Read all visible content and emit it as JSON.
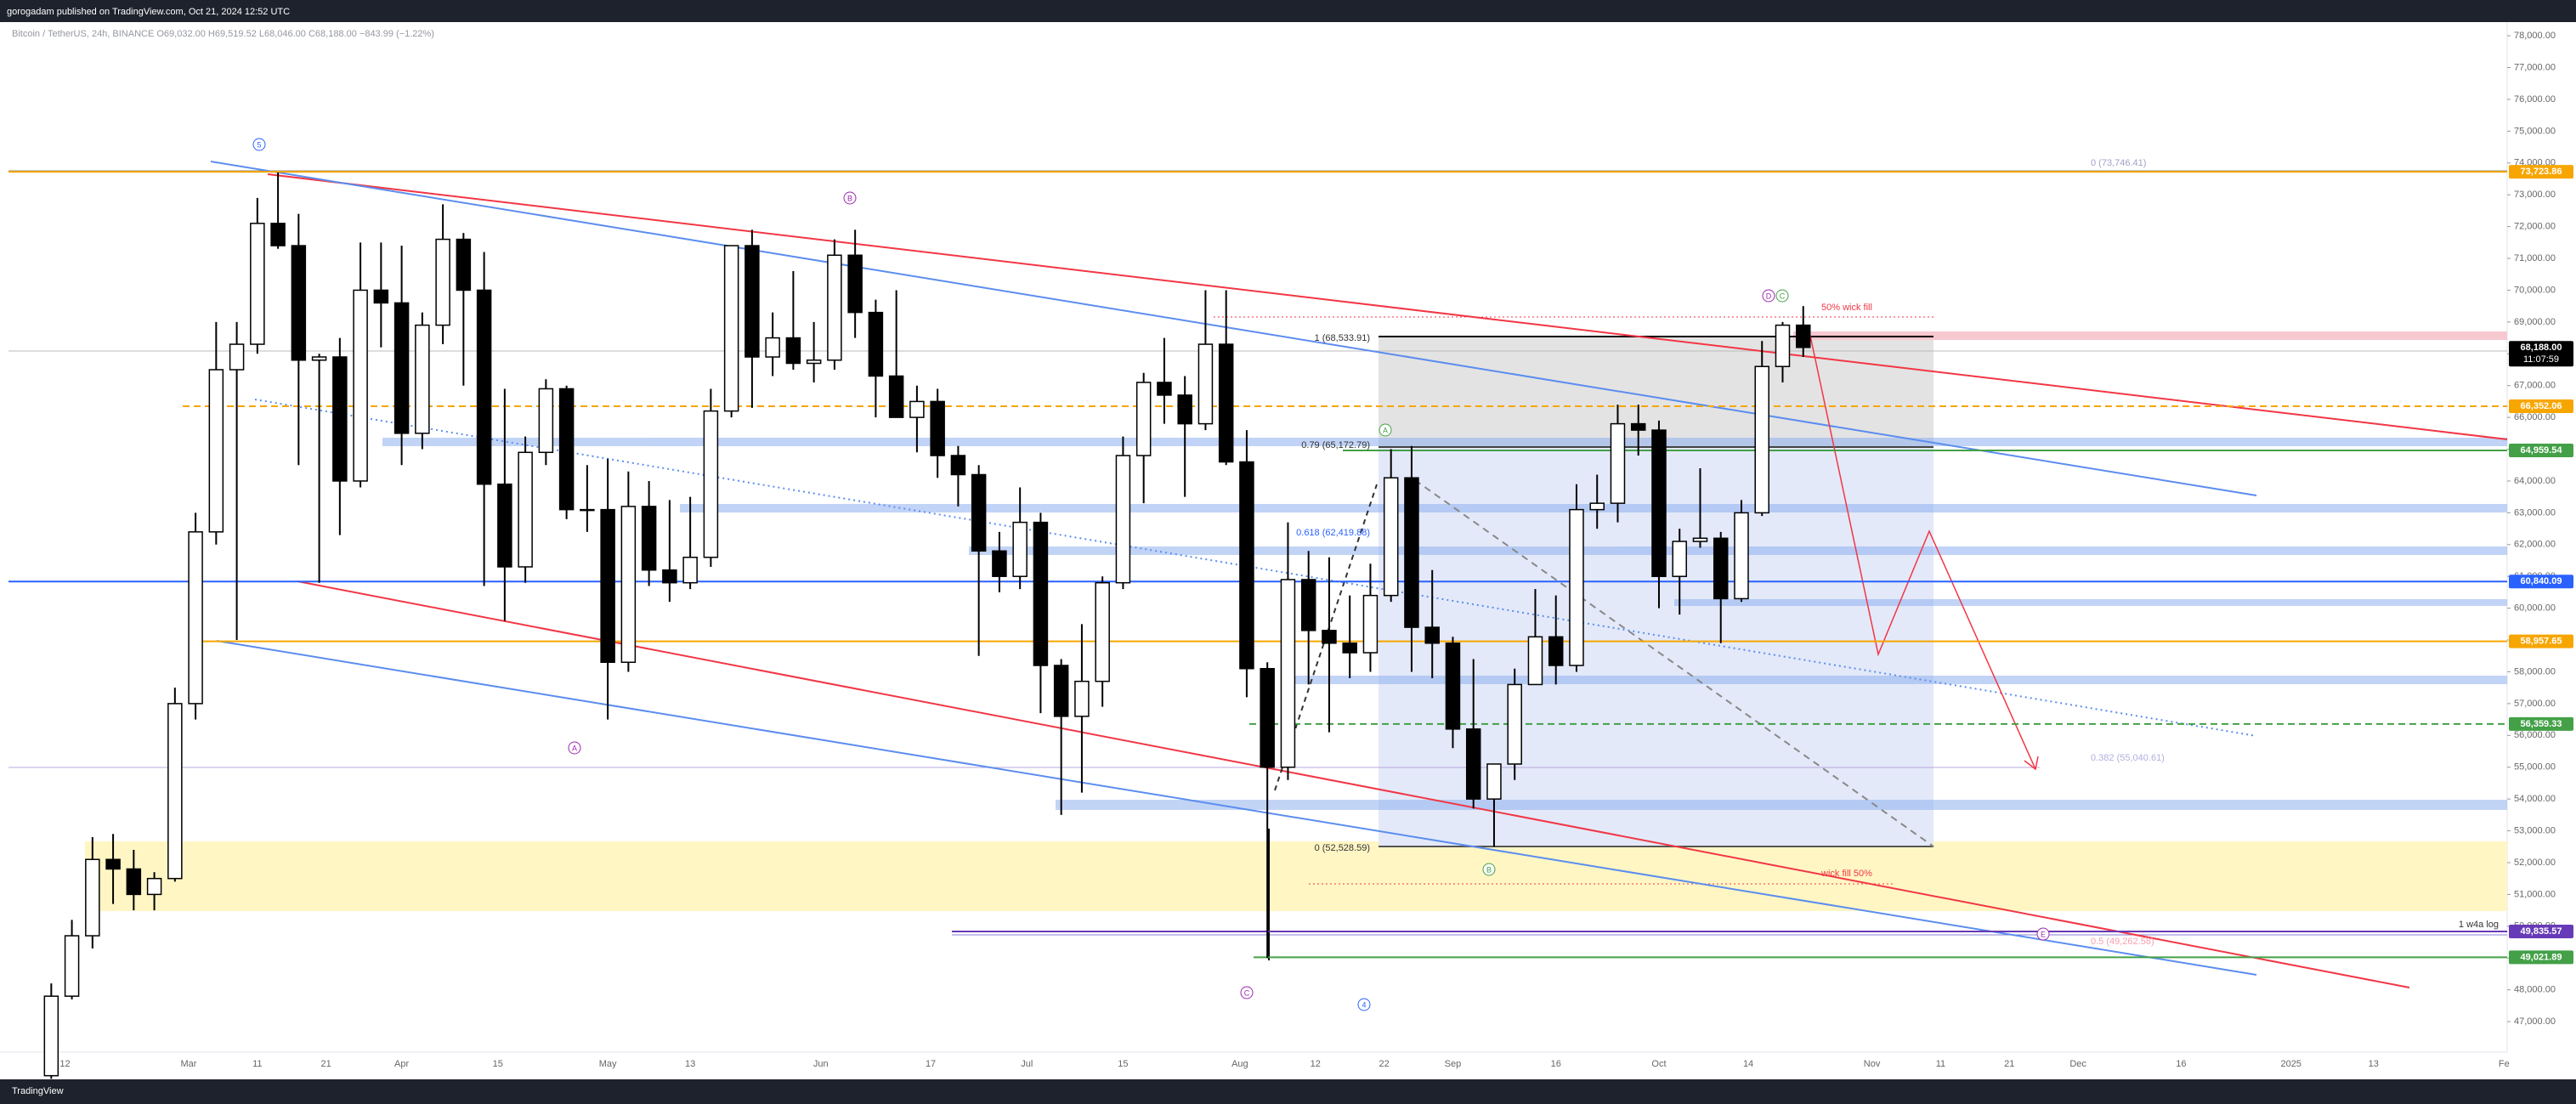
{
  "header": {
    "publisher": "gorogadam published on TradingView.com, Oct 21, 2024 12:52 UTC",
    "symbol": "Bitcoin / TetherUS, 24h, BINANCE  O69,032.00  H69,519.52  L68,046.00  C68,188.00  −843.99 (−1.22%)",
    "footer": "TradingView"
  },
  "chart_data": {
    "type": "candlestick",
    "ohlc": [
      [
        45300,
        48200,
        45200,
        47800
      ],
      [
        47800,
        50200,
        47700,
        49700
      ],
      [
        49700,
        52800,
        49300,
        52100
      ],
      [
        52100,
        52900,
        50700,
        51800
      ],
      [
        51800,
        52400,
        50500,
        51000
      ],
      [
        51000,
        51700,
        50500,
        51500
      ],
      [
        51500,
        57500,
        51400,
        57000
      ],
      [
        57000,
        63000,
        56500,
        62400
      ],
      [
        62400,
        69000,
        62000,
        67500
      ],
      [
        67500,
        69000,
        59000,
        68300
      ],
      [
        68300,
        72900,
        68000,
        72100
      ],
      [
        72100,
        73700,
        71300,
        71400
      ],
      [
        71400,
        72400,
        64500,
        67800
      ],
      [
        67800,
        68000,
        60800,
        67900
      ],
      [
        67900,
        68500,
        62300,
        64000
      ],
      [
        64000,
        71500,
        63800,
        70000
      ],
      [
        70000,
        71500,
        68200,
        69600
      ],
      [
        69600,
        71400,
        64500,
        65500
      ],
      [
        65500,
        69300,
        65000,
        68900
      ],
      [
        68900,
        72700,
        68300,
        71600
      ],
      [
        71600,
        71800,
        67000,
        70000
      ],
      [
        70000,
        71200,
        60700,
        63900
      ],
      [
        63900,
        66900,
        59600,
        61300
      ],
      [
        61300,
        65400,
        60800,
        64900
      ],
      [
        64900,
        67200,
        64500,
        66900
      ],
      [
        66900,
        67000,
        62800,
        63100
      ],
      [
        63100,
        64500,
        62400,
        63100
      ],
      [
        63100,
        64700,
        56500,
        58300
      ],
      [
        58300,
        64300,
        58000,
        63200
      ],
      [
        63200,
        64000,
        60700,
        61200
      ],
      [
        61200,
        63400,
        60200,
        60800
      ],
      [
        60800,
        63500,
        60600,
        61600
      ],
      [
        61600,
        66900,
        61300,
        66200
      ],
      [
        66200,
        71400,
        66000,
        71400
      ],
      [
        71400,
        71900,
        66300,
        67900
      ],
      [
        67900,
        69300,
        67300,
        68500
      ],
      [
        68500,
        70600,
        67500,
        67700
      ],
      [
        67700,
        69000,
        67100,
        67800
      ],
      [
        67800,
        71600,
        67500,
        71100
      ],
      [
        71100,
        71900,
        68500,
        69300
      ],
      [
        69300,
        69700,
        66000,
        67300
      ],
      [
        67300,
        70000,
        66100,
        66000
      ],
      [
        66000,
        67000,
        64900,
        66500
      ],
      [
        66500,
        66900,
        64100,
        64800
      ],
      [
        64800,
        65100,
        63200,
        64200
      ],
      [
        64200,
        64500,
        58500,
        61800
      ],
      [
        61800,
        62400,
        60500,
        61000
      ],
      [
        61000,
        63800,
        60600,
        62700
      ],
      [
        62700,
        63000,
        56700,
        58200
      ],
      [
        58200,
        58400,
        53500,
        56600
      ],
      [
        56600,
        59500,
        54200,
        57700
      ],
      [
        57700,
        61000,
        56900,
        60800
      ],
      [
        60800,
        65400,
        60600,
        64800
      ],
      [
        64800,
        67400,
        63300,
        67100
      ],
      [
        67100,
        68500,
        65800,
        66700
      ],
      [
        66700,
        67300,
        63500,
        65800
      ],
      [
        65800,
        70000,
        65600,
        68300
      ],
      [
        68300,
        70000,
        64500,
        64600
      ],
      [
        64600,
        65600,
        57200,
        58100
      ],
      [
        58100,
        58300,
        49000,
        55000
      ],
      [
        55000,
        62700,
        54600,
        60900
      ],
      [
        60900,
        61800,
        57600,
        59300
      ],
      [
        59300,
        61600,
        56100,
        58900
      ],
      [
        58900,
        60400,
        57800,
        58600
      ],
      [
        58600,
        61400,
        58000,
        60400
      ],
      [
        60400,
        65000,
        60200,
        64100
      ],
      [
        64100,
        65100,
        58000,
        59400
      ],
      [
        59400,
        61200,
        57800,
        58900
      ],
      [
        58900,
        59100,
        55600,
        56200
      ],
      [
        56200,
        58400,
        53700,
        54000
      ],
      [
        54000,
        55000,
        52500,
        55100
      ],
      [
        55100,
        58100,
        54600,
        57600
      ],
      [
        57600,
        60600,
        57600,
        59100
      ],
      [
        59100,
        60400,
        57600,
        58200
      ],
      [
        58200,
        63900,
        58000,
        63100
      ],
      [
        63100,
        64200,
        62500,
        63300
      ],
      [
        63300,
        66400,
        62700,
        65800
      ],
      [
        65800,
        66400,
        64800,
        65600
      ],
      [
        65600,
        65900,
        60000,
        61000
      ],
      [
        61000,
        62500,
        59800,
        62100
      ],
      [
        62100,
        64400,
        61900,
        62200
      ],
      [
        62200,
        62400,
        58900,
        60300
      ],
      [
        60300,
        63400,
        60200,
        63000
      ],
      [
        63000,
        68400,
        62900,
        67600
      ],
      [
        67600,
        69000,
        67100,
        68900
      ],
      [
        68900,
        69500,
        67900,
        68200
      ]
    ],
    "up_color": "#ffffff",
    "down_color": "#000000",
    "ylim": [
      46040,
      78430
    ],
    "yticks": [
      {
        "value": 47000,
        "label": "47,000.00"
      },
      {
        "value": 48000,
        "label": "48,000.00"
      },
      {
        "value": 49000,
        "label": "49,000.00"
      },
      {
        "value": 50000,
        "label": "50,000.00"
      },
      {
        "value": 51000,
        "label": "51,000.00"
      },
      {
        "value": 52000,
        "label": "52,000.00"
      },
      {
        "value": 53000,
        "label": "53,000.00"
      },
      {
        "value": 54000,
        "label": "54,000.00"
      },
      {
        "value": 55000,
        "label": "55,000.00"
      },
      {
        "value": 56000,
        "label": "56,000.00"
      },
      {
        "value": 57000,
        "label": "57,000.00"
      },
      {
        "value": 58000,
        "label": "58,000.00"
      },
      {
        "value": 59000,
        "label": "59,000.00"
      },
      {
        "value": 60000,
        "label": "60,000.00"
      },
      {
        "value": 61000,
        "label": "61,000.00"
      },
      {
        "value": 62000,
        "label": "62,000.00"
      },
      {
        "value": 63000,
        "label": "63,000.00"
      },
      {
        "value": 64000,
        "label": "64,000.00"
      },
      {
        "value": 65000,
        "label": "65,000.00"
      },
      {
        "value": 66000,
        "label": "66,000.00"
      },
      {
        "value": 67000,
        "label": "67,000.00"
      },
      {
        "value": 68000,
        "label": "68,000.00"
      },
      {
        "value": 69000,
        "label": "69,000.00"
      },
      {
        "value": 70000,
        "label": "70,000.00"
      },
      {
        "value": 71000,
        "label": "71,000.00"
      },
      {
        "value": 72000,
        "label": "72,000.00"
      },
      {
        "value": 73000,
        "label": "73,000.00"
      },
      {
        "value": 74000,
        "label": "74,000.00"
      },
      {
        "value": 75000,
        "label": "75,000.00"
      },
      {
        "value": 76000,
        "label": "76,000.00"
      },
      {
        "value": 77000,
        "label": "77,000.00"
      },
      {
        "value": 78000,
        "label": "78,000.00"
      }
    ],
    "xlabels": [
      "12",
      "Mar",
      "11",
      "21",
      "Apr",
      "15",
      "May",
      "13",
      "Jun",
      "17",
      "Jul",
      "15",
      "Aug",
      "12",
      "22",
      "Sep",
      "16",
      "Oct",
      "14",
      "Nov",
      "11",
      "21",
      "Dec",
      "16",
      "2025",
      "13",
      "Fe"
    ],
    "price_tags": [
      {
        "value": 73723.86,
        "label": "73,723.86",
        "color": "#f7a600"
      },
      {
        "value": 68188,
        "label": "68,188.00",
        "color": "#000000"
      },
      {
        "value": 66352.06,
        "label": "66,352.06",
        "color": "#f7a600"
      },
      {
        "value": 64959.54,
        "label": "64,959.54",
        "color": "#43a047"
      },
      {
        "value": 60840.09,
        "label": "60,840.09",
        "color": "#2962ff"
      },
      {
        "value": 58957.65,
        "label": "58,957.65",
        "color": "#f7a600"
      },
      {
        "value": 56359.33,
        "label": "56,359.33",
        "color": "#43a047"
      },
      {
        "value": 49835.57,
        "label": "49,835.57",
        "color": "#673ab7"
      },
      {
        "value": 49021.89,
        "label": "49,021.89",
        "color": "#43a047"
      }
    ],
    "countdown": "11:07:59",
    "annotations": [
      "0 (73,746.41)",
      "50% wick fill",
      "1 (68,533.91)",
      "0.79 (65,172.79)",
      "0.618 (62,419.88)",
      "0 (52,528.59)",
      "0.382 (55,040.61)",
      "wick fill 50%",
      "0.5 (49,262.58)",
      "1 w4a log"
    ],
    "waves": [
      "5",
      "B",
      "A",
      "C",
      "4",
      "A",
      "B",
      "D",
      "C",
      "E"
    ]
  }
}
